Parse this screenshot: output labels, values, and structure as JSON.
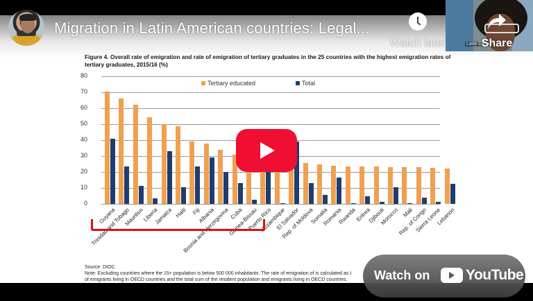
{
  "header": {
    "title": "Migration in Latin American countries: Legal...",
    "watch_later_label": "Watch later",
    "share_label": "Share",
    "webcam_name_tag": "Latie Dietrich"
  },
  "slide": {
    "figure_title": "Figure 4. Overall rate of emigration and rate of emigration of tertiary graduates in the 25 countries with the highest emigration rates of tertiary graduates, 2015/16 (%)",
    "source": "Source: DIOC.",
    "note_line1": "Note: Excluding countries where the 15+ population is below 500 000 inhabitants. The rate of emigration of is calculated as t",
    "note_line2": "of emigrants living in OECD countries and the total sum of the resident population and emigrants living in OECD countries."
  },
  "colors": {
    "tertiary": "#f0a050",
    "total": "#1f3d6e",
    "bracket": "#e01010",
    "play_button": "#f00f32"
  },
  "overlay": {
    "watch_on_label": "Watch on",
    "youtube_word": "YouTube"
  },
  "chart_data": {
    "type": "bar",
    "title": "Figure 4. Overall rate of emigration and rate of emigration of tertiary graduates in the 25 countries with the highest emigration rates of tertiary graduates, 2015/16 (%)",
    "xlabel": "",
    "ylabel": "%",
    "ylim": [
      0,
      80
    ],
    "yticks": [
      0,
      10,
      20,
      30,
      40,
      50,
      60,
      70,
      80
    ],
    "grid": true,
    "legend_position": "top",
    "categories": [
      "Guyana",
      "Trinidad and Tobago",
      "Mauritius",
      "Liberia",
      "Jamaica",
      "Haiti",
      "Fiji",
      "Albania",
      "Bosnia and Herzegovina",
      "Cuba",
      "Guinea-Bissau",
      "Puerto Rico",
      "Mozambique",
      "El Salvador",
      "Rep. of Moldova",
      "Somalia",
      "Romania",
      "Rwanda",
      "Eritrea",
      "Djibouti",
      "Morocco",
      "Mali",
      "Rep. of Congo",
      "Sierra Leone",
      "Lebanon"
    ],
    "series": [
      {
        "name": "Tertiary educated",
        "values": [
          70.5,
          66,
          62,
          54.5,
          50,
          48.5,
          39,
          38,
          34,
          31,
          29,
          28,
          26,
          26,
          25.5,
          25,
          24,
          23.5,
          23.5,
          23.5,
          23,
          23,
          23,
          22.5,
          22
        ]
      },
      {
        "name": "Total",
        "values": [
          41,
          23.5,
          11.5,
          3.5,
          33,
          10.5,
          23.5,
          29,
          20,
          13,
          2.5,
          40,
          0.5,
          39,
          13,
          5.5,
          16.5,
          0.5,
          5,
          1.5,
          10.5,
          0.5,
          4,
          1.5,
          12.5
        ]
      }
    ]
  }
}
